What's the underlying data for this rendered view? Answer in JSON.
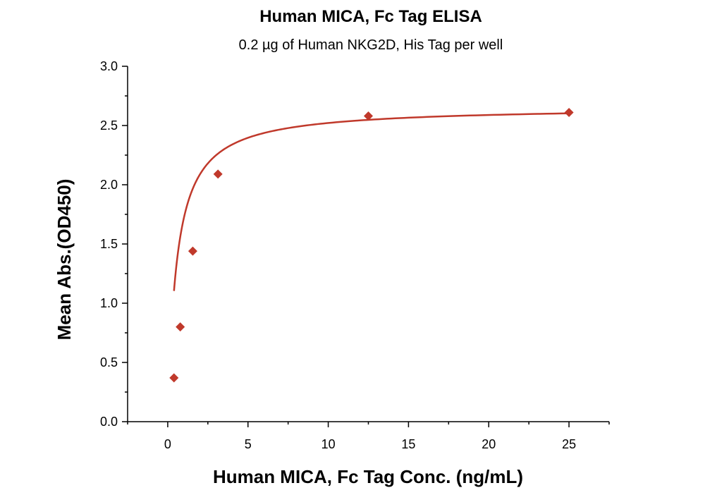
{
  "chart_data": {
    "type": "scatter",
    "title": "Human MICA, Fc Tag ELISA",
    "subtitle": "0.2 µg of Human NKG2D, His Tag per well",
    "xlabel": "Human MICA, Fc Tag Conc. (ng/mL)",
    "ylabel": "Mean Abs.(OD450)",
    "xlim": [
      -2.5,
      27.5
    ],
    "ylim": [
      0,
      3.0
    ],
    "xticks": [
      0,
      5,
      10,
      15,
      20,
      25
    ],
    "yticks": [
      0.0,
      0.5,
      1.0,
      1.5,
      2.0,
      2.5,
      3.0
    ],
    "xtick_labels": [
      "0",
      "5",
      "10",
      "15",
      "20",
      "25"
    ],
    "ytick_labels": [
      "0.0",
      "0.5",
      "1.0",
      "1.5",
      "2.0",
      "2.5",
      "3.0"
    ],
    "grid": false,
    "series": [
      {
        "name": "Human MICA, Fc Tag",
        "marker": "diamond",
        "color": "#C0392B",
        "x": [
          0.39,
          0.78,
          1.56,
          3.13,
          12.5,
          25
        ],
        "y": [
          0.37,
          0.8,
          1.44,
          2.09,
          2.58,
          2.61
        ],
        "fit_curve": true
      }
    ]
  }
}
